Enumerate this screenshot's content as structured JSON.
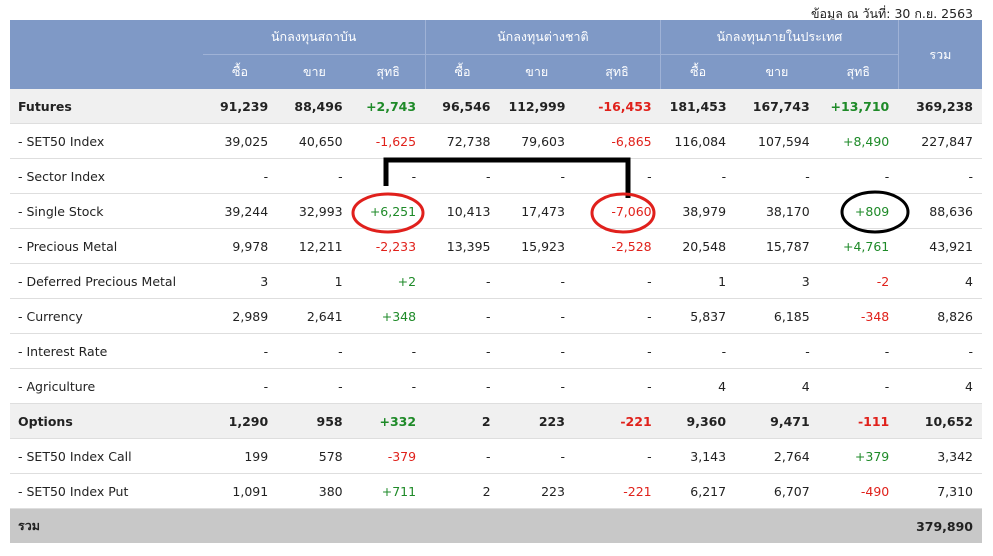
{
  "header": {
    "date_note": "ข้อมูล ณ วันที่: 30 ก.ย. 2563",
    "groups": [
      "นักลงทุนสถาบัน",
      "นักลงทุนต่างชาติ",
      "นักลงทุนภายในประเทศ"
    ],
    "sub": [
      "ซื้อ",
      "ขาย",
      "สุทธิ"
    ],
    "total": "รวม"
  },
  "rows": [
    {
      "label": "Futures",
      "group": true,
      "cells": [
        "91,239",
        "88,496",
        "+2,743",
        "96,546",
        "112,999",
        "-16,453",
        "181,453",
        "167,743",
        "+13,710",
        "369,238"
      ]
    },
    {
      "label": "- SET50 Index",
      "group": false,
      "cells": [
        "39,025",
        "40,650",
        "-1,625",
        "72,738",
        "79,603",
        "-6,865",
        "116,084",
        "107,594",
        "+8,490",
        "227,847"
      ]
    },
    {
      "label": "- Sector Index",
      "group": false,
      "cells": [
        "-",
        "-",
        "-",
        "-",
        "-",
        "-",
        "-",
        "-",
        "-",
        "-"
      ]
    },
    {
      "label": "- Single Stock",
      "group": false,
      "cells": [
        "39,244",
        "32,993",
        "+6,251",
        "10,413",
        "17,473",
        "-7,060",
        "38,979",
        "38,170",
        "+809",
        "88,636"
      ]
    },
    {
      "label": "- Precious Metal",
      "group": false,
      "cells": [
        "9,978",
        "12,211",
        "-2,233",
        "13,395",
        "15,923",
        "-2,528",
        "20,548",
        "15,787",
        "+4,761",
        "43,921"
      ]
    },
    {
      "label": "- Deferred Precious Metal",
      "group": false,
      "cells": [
        "3",
        "1",
        "+2",
        "-",
        "-",
        "-",
        "1",
        "3",
        "-2",
        "4"
      ]
    },
    {
      "label": "- Currency",
      "group": false,
      "cells": [
        "2,989",
        "2,641",
        "+348",
        "-",
        "-",
        "-",
        "5,837",
        "6,185",
        "-348",
        "8,826"
      ]
    },
    {
      "label": "- Interest Rate",
      "group": false,
      "cells": [
        "-",
        "-",
        "-",
        "-",
        "-",
        "-",
        "-",
        "-",
        "-",
        "-"
      ]
    },
    {
      "label": "- Agriculture",
      "group": false,
      "cells": [
        "-",
        "-",
        "-",
        "-",
        "-",
        "-",
        "4",
        "4",
        "-",
        "4"
      ]
    },
    {
      "label": "Options",
      "group": true,
      "cells": [
        "1,290",
        "958",
        "+332",
        "2",
        "223",
        "-221",
        "9,360",
        "9,471",
        "-111",
        "10,652"
      ]
    },
    {
      "label": "- SET50 Index Call",
      "group": false,
      "cells": [
        "199",
        "578",
        "-379",
        "-",
        "-",
        "-",
        "3,143",
        "2,764",
        "+379",
        "3,342"
      ]
    },
    {
      "label": "- SET50 Index Put",
      "group": false,
      "cells": [
        "1,091",
        "380",
        "+711",
        "2",
        "223",
        "-221",
        "6,217",
        "6,707",
        "-490",
        "7,310"
      ]
    }
  ],
  "total_row": {
    "label": "รวม",
    "value": "379,890"
  },
  "annotations": {
    "circle_color_red": "#e0201c",
    "circle_color_black": "#000000",
    "connector_color": "#000000"
  }
}
